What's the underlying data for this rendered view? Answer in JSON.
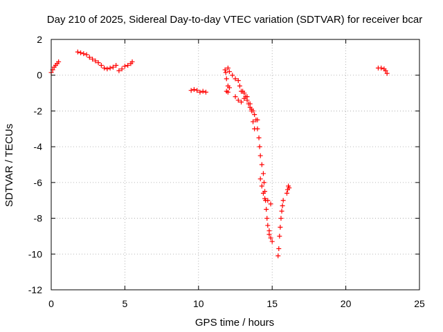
{
  "chart_data": {
    "type": "scatter",
    "title": "Day 210 of 2025, Sidereal Day-to-day VTEC variation (SDTVAR) for receiver bcar",
    "xlabel": "GPS time / hours",
    "ylabel": "SDTVAR / TECUs",
    "xlim": [
      0,
      25
    ],
    "ylim": [
      -12,
      2
    ],
    "xticks": [
      0,
      5,
      10,
      15,
      20,
      25
    ],
    "yticks": [
      -12,
      -10,
      -8,
      -6,
      -4,
      -2,
      0,
      2
    ],
    "grid": true,
    "marker": "plus",
    "color": "#ff0000",
    "series": [
      {
        "name": "SDTVAR",
        "points": [
          [
            0.0,
            0.15
          ],
          [
            0.1,
            0.3
          ],
          [
            0.2,
            0.45
          ],
          [
            0.3,
            0.55
          ],
          [
            0.4,
            0.65
          ],
          [
            0.5,
            0.75
          ],
          [
            1.8,
            1.3
          ],
          [
            2.0,
            1.25
          ],
          [
            2.2,
            1.2
          ],
          [
            2.4,
            1.15
          ],
          [
            2.6,
            1.0
          ],
          [
            2.8,
            0.9
          ],
          [
            3.0,
            0.8
          ],
          [
            3.2,
            0.7
          ],
          [
            3.4,
            0.55
          ],
          [
            3.6,
            0.4
          ],
          [
            3.8,
            0.35
          ],
          [
            4.0,
            0.4
          ],
          [
            4.2,
            0.45
          ],
          [
            4.4,
            0.55
          ],
          [
            4.6,
            0.25
          ],
          [
            4.8,
            0.35
          ],
          [
            5.0,
            0.5
          ],
          [
            5.2,
            0.55
          ],
          [
            5.4,
            0.65
          ],
          [
            5.5,
            0.75
          ],
          [
            9.5,
            -0.85
          ],
          [
            9.7,
            -0.8
          ],
          [
            9.9,
            -0.85
          ],
          [
            10.1,
            -0.95
          ],
          [
            10.3,
            -0.9
          ],
          [
            10.5,
            -0.95
          ],
          [
            11.8,
            0.3
          ],
          [
            11.85,
            0.15
          ],
          [
            11.9,
            -0.2
          ],
          [
            12.0,
            -0.6
          ],
          [
            11.9,
            -0.9
          ],
          [
            12.0,
            -0.95
          ],
          [
            12.1,
            -0.7
          ],
          [
            12.0,
            0.4
          ],
          [
            12.1,
            0.2
          ],
          [
            12.3,
            0.0
          ],
          [
            12.5,
            -0.2
          ],
          [
            12.7,
            -0.3
          ],
          [
            12.8,
            -0.6
          ],
          [
            12.9,
            -0.9
          ],
          [
            12.5,
            -1.2
          ],
          [
            12.7,
            -1.4
          ],
          [
            12.9,
            -1.5
          ],
          [
            13.1,
            -1.3
          ],
          [
            13.3,
            -1.2
          ],
          [
            13.5,
            -1.6
          ],
          [
            13.6,
            -2.0
          ],
          [
            13.7,
            -2.6
          ],
          [
            13.8,
            -3.0
          ],
          [
            13.9,
            -2.5
          ],
          [
            14.0,
            -2.5
          ],
          [
            13.0,
            -0.9
          ],
          [
            13.1,
            -1.0
          ],
          [
            13.2,
            -1.2
          ],
          [
            13.3,
            -1.4
          ],
          [
            13.4,
            -1.6
          ],
          [
            13.5,
            -1.8
          ],
          [
            13.6,
            -1.9
          ],
          [
            13.7,
            -2.0
          ],
          [
            13.8,
            -2.2
          ],
          [
            14.0,
            -3.0
          ],
          [
            14.1,
            -3.5
          ],
          [
            14.15,
            -4.0
          ],
          [
            14.2,
            -4.5
          ],
          [
            14.3,
            -5.0
          ],
          [
            14.4,
            -5.5
          ],
          [
            14.45,
            -6.0
          ],
          [
            14.5,
            -6.5
          ],
          [
            14.55,
            -7.0
          ],
          [
            14.6,
            -7.5
          ],
          [
            14.65,
            -8.0
          ],
          [
            14.7,
            -8.4
          ],
          [
            14.8,
            -8.7
          ],
          [
            14.2,
            -5.8
          ],
          [
            14.3,
            -6.2
          ],
          [
            14.4,
            -6.6
          ],
          [
            14.5,
            -6.9
          ],
          [
            14.7,
            -7.0
          ],
          [
            14.9,
            -7.2
          ],
          [
            14.8,
            -8.9
          ],
          [
            14.9,
            -9.1
          ],
          [
            15.0,
            -9.3
          ],
          [
            15.4,
            -10.1
          ],
          [
            15.45,
            -9.7
          ],
          [
            15.5,
            -9.0
          ],
          [
            15.55,
            -8.5
          ],
          [
            15.6,
            -8.0
          ],
          [
            15.65,
            -7.6
          ],
          [
            15.7,
            -7.3
          ],
          [
            15.75,
            -7.0
          ],
          [
            16.0,
            -6.6
          ],
          [
            16.05,
            -6.4
          ],
          [
            16.1,
            -6.2
          ],
          [
            16.15,
            -6.3
          ],
          [
            22.2,
            0.4
          ],
          [
            22.4,
            0.4
          ],
          [
            22.6,
            0.35
          ],
          [
            22.7,
            0.25
          ],
          [
            22.8,
            0.1
          ]
        ]
      }
    ]
  }
}
